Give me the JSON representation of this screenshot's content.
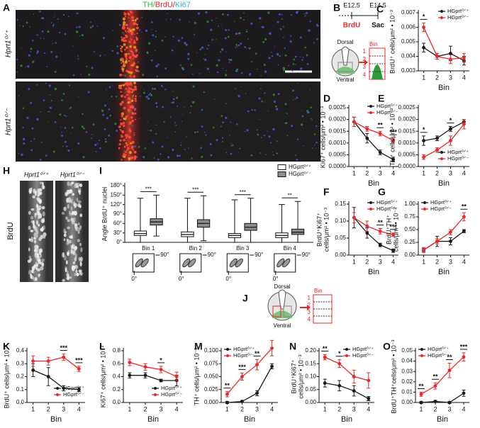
{
  "panels": {
    "A": "A",
    "B": "B",
    "H": "H",
    "I": "I",
    "J": "J"
  },
  "image_A": {
    "title": [
      "TH/",
      "BrdU/",
      "Ki67"
    ],
    "top_label": "Hprt1⁰ᐟ⁺",
    "bottom_label": "Hprt1⁰ᐟ⁻"
  },
  "image_H": {
    "left_label": "Hprt1⁰ᐟ⁺",
    "right_label": "Hprt1⁰ᐟ⁻",
    "stain": "BrdU"
  },
  "diagram_B": {
    "start": "E12.5",
    "end": "E14.5",
    "injection": "BrdU",
    "sacrifice": "Sac",
    "dorsal": "Dorsal",
    "ventral": "Ventral",
    "bin": "Bin",
    "bins": [
      "1",
      "2",
      "3",
      "4"
    ]
  },
  "diagram_J": {
    "dorsal": "Dorsal",
    "ventral": "Ventral",
    "bin": "Bin",
    "bins": [
      "1",
      "2",
      "3",
      "4"
    ]
  },
  "angle_icon": {
    "zero": "0°",
    "ninety": "90°"
  },
  "chart_data": [
    {
      "type": "line",
      "label": "C",
      "ylabel": [
        "BrdU⁺ cells/μm² • 10⁻³"
      ],
      "xlabel": "Bin",
      "x": [
        1,
        2,
        3,
        4
      ],
      "xlim": [
        0.6,
        4.4
      ],
      "xticks": [
        1,
        2,
        3,
        4
      ],
      "ylim": [
        0.003,
        0.007
      ],
      "yticks": [
        0.003,
        0.004,
        0.005,
        0.006,
        0.007
      ],
      "legend": "upper right",
      "series": [
        {
          "name": "HGprt⁰ᐟ⁺",
          "color": "#1a1a1a",
          "values": [
            0.0046,
            0.004,
            0.0042,
            0.0037
          ],
          "errors": [
            0.0003,
            0.0002,
            0.0005,
            0.0003
          ]
        },
        {
          "name": "HGprt⁰ᐟ⁻",
          "color": "#e8282b",
          "values": [
            0.006,
            0.004,
            0.0038,
            0.0039
          ],
          "errors": [
            0.0003,
            0.0002,
            0.0003,
            0.0003
          ]
        }
      ],
      "annotations": [
        {
          "x": 1,
          "text": "*"
        }
      ]
    },
    {
      "type": "line",
      "label": "D",
      "ylabel": [
        "Ki67⁺ cells/μm² • 10⁻³"
      ],
      "xlabel": "Bin",
      "x": [
        1,
        2,
        3,
        4
      ],
      "xlim": [
        0.6,
        4.4
      ],
      "xticks": [
        1,
        2,
        3,
        4
      ],
      "ylim": [
        0,
        0.0025
      ],
      "yticks": [
        {
          "value": 0,
          "label": "0.0000"
        },
        0.0005,
        {
          "value": 0.001,
          "label": "0.0010"
        },
        0.0015,
        {
          "value": 0.002,
          "label": "0.0020"
        },
        0.0025
      ],
      "legend": "upper right",
      "series": [
        {
          "name": "HGprt⁰ᐟ⁺",
          "color": "#1a1a1a",
          "values": [
            0.0019,
            0.0012,
            0.0006,
            0.0003
          ],
          "errors": [
            0.0002,
            0.0002,
            0.0001,
            0.0001
          ]
        },
        {
          "name": "HGprt⁰ᐟ⁻",
          "color": "#e8282b",
          "values": [
            0.0019,
            0.0016,
            0.0014,
            0.0011
          ],
          "errors": [
            0.0002,
            0.0001,
            0.0001,
            0.0001
          ]
        }
      ],
      "annotations": [
        {
          "x": 3,
          "text": "**"
        },
        {
          "x": 4,
          "text": "***"
        }
      ]
    },
    {
      "type": "line",
      "label": "E",
      "ylabel": [
        "TH⁺ cells/μm² • 10⁻³"
      ],
      "xlabel": "Bin",
      "x": [
        1,
        2,
        3,
        4
      ],
      "xlim": [
        0.6,
        4.4
      ],
      "xticks": [
        1,
        2,
        3,
        4
      ],
      "ylim": [
        0,
        0.0025
      ],
      "yticks": [
        {
          "value": 0,
          "label": "0.0000"
        },
        0.0005,
        {
          "value": 0.001,
          "label": "0.0010"
        },
        0.0015,
        {
          "value": 0.002,
          "label": "0.0020"
        },
        0.0025
      ],
      "legend": "lower right",
      "series": [
        {
          "name": "HGprt⁰ᐟ⁺",
          "color": "#1a1a1a",
          "values": [
            0.0011,
            0.0012,
            0.0016,
            0.0019
          ],
          "errors": [
            0.0002,
            0.0001,
            0.0001,
            0.0001
          ]
        },
        {
          "name": "HGprt⁰ᐟ⁻",
          "color": "#e8282b",
          "values": [
            0.0004,
            0.0007,
            0.0011,
            0.0018
          ],
          "errors": [
            0.0001,
            0.0001,
            0.0002,
            0.0002
          ]
        }
      ],
      "annotations": [
        {
          "x": 1,
          "text": "*"
        },
        {
          "x": 3,
          "text": "*"
        }
      ]
    },
    {
      "type": "line",
      "label": "F",
      "ylabel": [
        "BrdU⁺Ki67⁺",
        "cells/μm² • 10⁻³"
      ],
      "xlabel": "Bin",
      "x": [
        1,
        2,
        3,
        4
      ],
      "xlim": [
        0.6,
        4.4
      ],
      "xticks": [
        1,
        2,
        3,
        4
      ],
      "ylim": [
        0,
        0.15
      ],
      "yticks": [
        {
          "value": 0,
          "label": "0.00"
        },
        0.05,
        {
          "value": 0.1,
          "label": "0.10"
        },
        0.15
      ],
      "legend": "upper right",
      "series": [
        {
          "name": "HGprt⁰ᐟ⁺",
          "color": "#1a1a1a",
          "values": [
            0.11,
            0.065,
            0.03,
            0.013
          ],
          "errors": [
            0.03,
            0.015,
            0.005,
            0.005
          ]
        },
        {
          "name": "HGprt⁰ᐟ⁻",
          "color": "#e8282b",
          "values": [
            0.11,
            0.085,
            0.07,
            0.06
          ],
          "errors": [
            0.015,
            0.015,
            0.008,
            0.005
          ]
        }
      ],
      "annotations": [
        {
          "x": 3,
          "text": "**"
        },
        {
          "x": 4,
          "text": "***"
        }
      ]
    },
    {
      "type": "line",
      "label": "G",
      "ylabel": [
        "BrdU⁺TH⁺",
        "cells/μm² • 10⁻³"
      ],
      "xlabel": "Bin",
      "x": [
        1,
        2,
        3,
        4
      ],
      "xlim": [
        0.6,
        4.4
      ],
      "xticks": [
        1,
        2,
        3,
        4
      ],
      "ylim": [
        0,
        1
      ],
      "yticks": [
        {
          "value": 0,
          "label": "0.00"
        },
        0.25,
        {
          "value": 0.5,
          "label": "0.50"
        },
        0.75,
        {
          "value": 1,
          "label": "1.00"
        }
      ],
      "legend": "upper left",
      "series": [
        {
          "name": "HGprt⁰ᐟ⁺",
          "color": "#1a1a1a",
          "values": [
            0.1,
            0.27,
            0.27,
            0.47
          ],
          "errors": [
            0.03,
            0.1,
            0.07,
            0.03
          ]
        },
        {
          "name": "HGprt⁰ᐟ⁻",
          "color": "#e8282b",
          "values": [
            0.1,
            0.27,
            0.45,
            0.75
          ],
          "errors": [
            0.05,
            0.05,
            0.05,
            0.08
          ]
        }
      ],
      "annotations": [
        {
          "x": 4,
          "text": "**"
        }
      ]
    },
    {
      "type": "box",
      "label": "I",
      "ylabel": [
        "Angle BrdU⁺ nuclei"
      ],
      "categories": [
        "Bin 1",
        "Bin 2",
        "Bin 3",
        "Bin 4"
      ],
      "ylim": [
        0,
        180
      ],
      "yticks": [
        {
          "value": 0,
          "label": "0°"
        },
        {
          "value": 30,
          "label": "30°"
        },
        {
          "value": 60,
          "label": "60°"
        },
        {
          "value": 90,
          "label": "90°"
        },
        {
          "value": 120,
          "label": "120°"
        },
        {
          "value": 150,
          "label": "150°"
        },
        {
          "value": 180,
          "label": "180°"
        }
      ],
      "series": [
        {
          "name": "HGprt⁰ᐟ⁺",
          "color": "#ffffff",
          "min": [
            0,
            0,
            0,
            0
          ],
          "q1": [
            22,
            18,
            15,
            15
          ],
          "median": [
            28,
            25,
            22,
            22
          ],
          "q3": [
            36,
            33,
            28,
            30
          ],
          "max": [
            140,
            140,
            135,
            120
          ]
        },
        {
          "name": "HGprt⁰ᐟ⁻",
          "color": "#8c8c8c",
          "min": [
            20,
            5,
            0,
            0
          ],
          "q1": [
            55,
            48,
            38,
            25
          ],
          "median": [
            65,
            60,
            48,
            32
          ],
          "q3": [
            75,
            72,
            60,
            42
          ],
          "max": [
            150,
            148,
            140,
            130
          ]
        }
      ],
      "annotations": [
        {
          "category": "Bin 1",
          "text": "***"
        },
        {
          "category": "Bin 2",
          "text": "***"
        },
        {
          "category": "Bin 3",
          "text": "***"
        },
        {
          "category": "Bin 4",
          "text": "**"
        }
      ]
    },
    {
      "type": "line",
      "label": "K",
      "ylabel": [
        "BrdU⁺ cells/μm² • 10⁻³"
      ],
      "xlabel": "Bin",
      "x": [
        1,
        2,
        3,
        4
      ],
      "xlim": [
        0.6,
        4.4
      ],
      "xticks": [
        1,
        2,
        3,
        4
      ],
      "ylim": [
        0,
        0.4
      ],
      "yticks": [
        {
          "value": 0,
          "label": "0.0"
        },
        0.1,
        0.2,
        0.3,
        0.4
      ],
      "legend": "lower right",
      "series": [
        {
          "name": "HGprt⁰ᐟ⁺",
          "color": "#1a1a1a",
          "values": [
            0.25,
            0.2,
            0.11,
            0.1
          ],
          "errors": [
            0.05,
            0.07,
            0.02,
            0.015
          ]
        },
        {
          "name": "HGprt⁰ᐟ⁻",
          "color": "#e8282b",
          "values": [
            0.32,
            0.32,
            0.35,
            0.26
          ],
          "errors": [
            0.04,
            0.03,
            0.025,
            0.02
          ]
        }
      ],
      "annotations": [
        {
          "x": 3,
          "text": "***"
        },
        {
          "x": 4,
          "text": "***"
        }
      ]
    },
    {
      "type": "line",
      "label": "L",
      "ylabel": [
        "Ki67⁺ cells/μm² • 10⁻³"
      ],
      "xlabel": "Bin",
      "x": [
        1,
        2,
        3,
        4
      ],
      "xlim": [
        0.6,
        4.4
      ],
      "xticks": [
        1,
        2,
        3,
        4
      ],
      "ylim": [
        0,
        0.8
      ],
      "yticks": [
        {
          "value": 0,
          "label": "0.0"
        },
        0.2,
        0.4,
        0.6,
        0.8
      ],
      "legend": "lower right",
      "series": [
        {
          "name": "HGprt⁰ᐟ⁺",
          "color": "#1a1a1a",
          "values": [
            0.42,
            0.42,
            0.34,
            0.34
          ],
          "errors": [
            0.04,
            0.04,
            0.02,
            0.08
          ]
        },
        {
          "name": "HGprt⁰ᐟ⁻",
          "color": "#e8282b",
          "values": [
            0.62,
            0.55,
            0.51,
            0.4
          ],
          "errors": [
            0.05,
            0.05,
            0.05,
            0.07
          ]
        }
      ],
      "annotations": [
        {
          "x": 3,
          "text": "*"
        }
      ]
    },
    {
      "type": "line",
      "label": "M",
      "ylabel": [
        "TH⁺ cells/μm² • 10⁻³"
      ],
      "xlabel": "Bin",
      "x": [
        1,
        2,
        3,
        4
      ],
      "xlim": [
        0.6,
        4.4
      ],
      "xticks": [
        1,
        2,
        3,
        4
      ],
      "ylim": [
        0,
        0.1
      ],
      "yticks": [
        {
          "value": 0,
          "label": "0.000"
        },
        0.025,
        {
          "value": 0.05,
          "label": "0.050"
        },
        0.075,
        {
          "value": 0.1,
          "label": "0.100"
        }
      ],
      "legend": "upper left",
      "series": [
        {
          "name": "HGprt⁰ᐟ⁺",
          "color": "#1a1a1a",
          "values": [
            0,
            0.002,
            0.018,
            0.07
          ],
          "errors": [
            0.002,
            0.002,
            0.005,
            0.005
          ]
        },
        {
          "name": "HGprt⁰ᐟ⁻",
          "color": "#e8282b",
          "values": [
            0.016,
            0.05,
            0.073,
            0.105
          ],
          "errors": [
            0.005,
            0.007,
            0.01,
            0.015
          ]
        }
      ],
      "annotations": [
        {
          "x": 1,
          "text": "**"
        },
        {
          "x": 2,
          "text": "***"
        },
        {
          "x": 3,
          "text": "**"
        }
      ]
    },
    {
      "type": "line",
      "label": "N",
      "ylabel": [
        "BrdU⁺Ki67⁺",
        "cells/μm² • 10⁻³"
      ],
      "xlabel": "Bin",
      "x": [
        1,
        2,
        3,
        4
      ],
      "xlim": [
        0.6,
        4.4
      ],
      "xticks": [
        1,
        2,
        3,
        4
      ],
      "ylim": [
        0,
        0.2
      ],
      "yticks": [
        {
          "value": 0,
          "label": "0.00"
        },
        0.05,
        {
          "value": 0.1,
          "label": "0.10"
        },
        0.15,
        {
          "value": 0.2,
          "label": "0.20"
        }
      ],
      "legend": "upper right",
      "series": [
        {
          "name": "HGprt⁰ᐟ⁺",
          "color": "#1a1a1a",
          "values": [
            0.075,
            0.065,
            0.045,
            0.015
          ],
          "errors": [
            0.015,
            0.02,
            0.02,
            0.008
          ]
        },
        {
          "name": "HGprt⁰ᐟ⁻",
          "color": "#e8282b",
          "values": [
            0.175,
            0.15,
            0.1,
            0.085
          ],
          "errors": [
            0.01,
            0.015,
            0.025,
            0.03
          ]
        }
      ],
      "annotations": [
        {
          "x": 1,
          "text": "**"
        },
        {
          "x": 2,
          "text": "*"
        }
      ]
    },
    {
      "type": "line",
      "label": "O",
      "ylabel": [
        "BrdU⁺TH⁺cells/μm² • 10⁻³"
      ],
      "xlabel": "Bin",
      "x": [
        1,
        2,
        3,
        4
      ],
      "xlim": [
        0.6,
        4.4
      ],
      "xticks": [
        1,
        2,
        3,
        4
      ],
      "ylim": [
        0,
        0.05
      ],
      "yticks": [
        {
          "value": 0,
          "label": "0.00"
        },
        0.01,
        0.02,
        0.03,
        0.04,
        0.05
      ],
      "legend": "upper left",
      "series": [
        {
          "name": "HGprt⁰ᐟ⁺",
          "color": "#1a1a1a",
          "values": [
            0,
            0.001,
            0,
            0.009
          ],
          "errors": [
            0.001,
            0.001,
            0.001,
            0.003
          ]
        },
        {
          "name": "HGprt⁰ᐟ⁻",
          "color": "#e8282b",
          "values": [
            0.008,
            0.016,
            0.031,
            0.044
          ],
          "errors": [
            0.002,
            0.003,
            0.007,
            0.004
          ]
        }
      ],
      "annotations": [
        {
          "x": 1,
          "text": "**"
        },
        {
          "x": 2,
          "text": "**"
        },
        {
          "x": 3,
          "text": "**"
        },
        {
          "x": 4,
          "text": "***"
        }
      ]
    }
  ]
}
